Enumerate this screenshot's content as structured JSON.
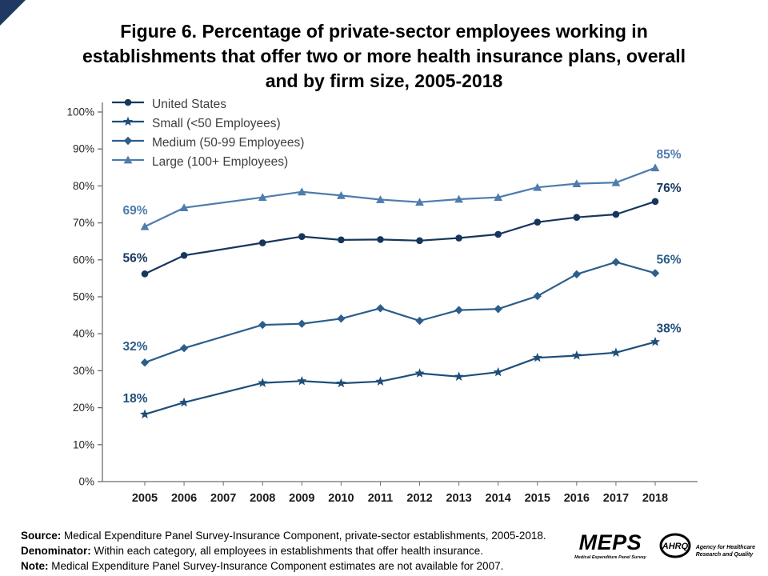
{
  "page": {
    "title": "Figure 6. Percentage of private-sector employees working in establishments that offer two or more health insurance plans, overall and by firm size, 2005-2018"
  },
  "footer": {
    "source_label": "Source:",
    "source_text": "Medical Expenditure Panel Survey-Insurance Component, private-sector establishments, 2005-2018.",
    "denominator_label": "Denominator:",
    "denominator_text": "Within each category, all employees in establishments that offer health insurance.",
    "note_label": "Note:",
    "note_text": "Medical Expenditure Panel Survey-Insurance Component estimates are not available for 2007."
  },
  "logos": {
    "meps_name": "MEPS",
    "meps_caption": "Medical Expenditure Panel Survey",
    "ahrq_name": "AHRQ",
    "ahrq_caption_line1": "Agency for Healthcare",
    "ahrq_caption_line2": "Research and Quality"
  },
  "chart_data": {
    "type": "line",
    "title": "Figure 6. Percentage of private-sector employees working in establishments that offer two or more health insurance plans, overall and by firm size, 2005-2018",
    "categories": [
      "2005",
      "2006",
      "2007",
      "2008",
      "2009",
      "2010",
      "2011",
      "2012",
      "2013",
      "2014",
      "2015",
      "2016",
      "2017",
      "2018"
    ],
    "xlabel": "",
    "ylabel": "",
    "ylim": [
      0,
      100
    ],
    "ytick_step": 10,
    "ytick_suffix": "%",
    "grid": false,
    "legend_position": "top-left-inside",
    "note": "2007 estimates not available",
    "series": [
      {
        "name": "United States",
        "marker": "circle",
        "color": "#17365D",
        "start_label": "56%",
        "end_label": "76%",
        "values": [
          56.2,
          61.2,
          null,
          64.6,
          66.3,
          65.4,
          65.5,
          65.2,
          65.9,
          66.9,
          70.2,
          71.5,
          72.3,
          75.8
        ]
      },
      {
        "name": "Small (<50 Employees)",
        "marker": "star",
        "color": "#1F4E79",
        "start_label": "18%",
        "end_label": "38%",
        "values": [
          18.2,
          21.4,
          null,
          26.7,
          27.2,
          26.6,
          27.1,
          29.3,
          28.4,
          29.6,
          33.5,
          34.1,
          34.9,
          37.8
        ]
      },
      {
        "name": "Medium (50-99 Employees)",
        "marker": "diamond",
        "color": "#2D5E8B",
        "start_label": "32%",
        "end_label": "56%",
        "values": [
          32.2,
          36.1,
          null,
          42.4,
          42.7,
          44.1,
          46.9,
          43.5,
          46.4,
          46.7,
          50.2,
          56.1,
          59.4,
          56.4
        ]
      },
      {
        "name": "Large (100+ Employees)",
        "marker": "triangle",
        "color": "#4E7CAE",
        "start_label": "69%",
        "end_label": "85%",
        "values": [
          69.0,
          74.1,
          null,
          76.9,
          78.4,
          77.4,
          76.3,
          75.6,
          76.4,
          76.9,
          79.6,
          80.6,
          80.9,
          84.9
        ]
      }
    ]
  }
}
